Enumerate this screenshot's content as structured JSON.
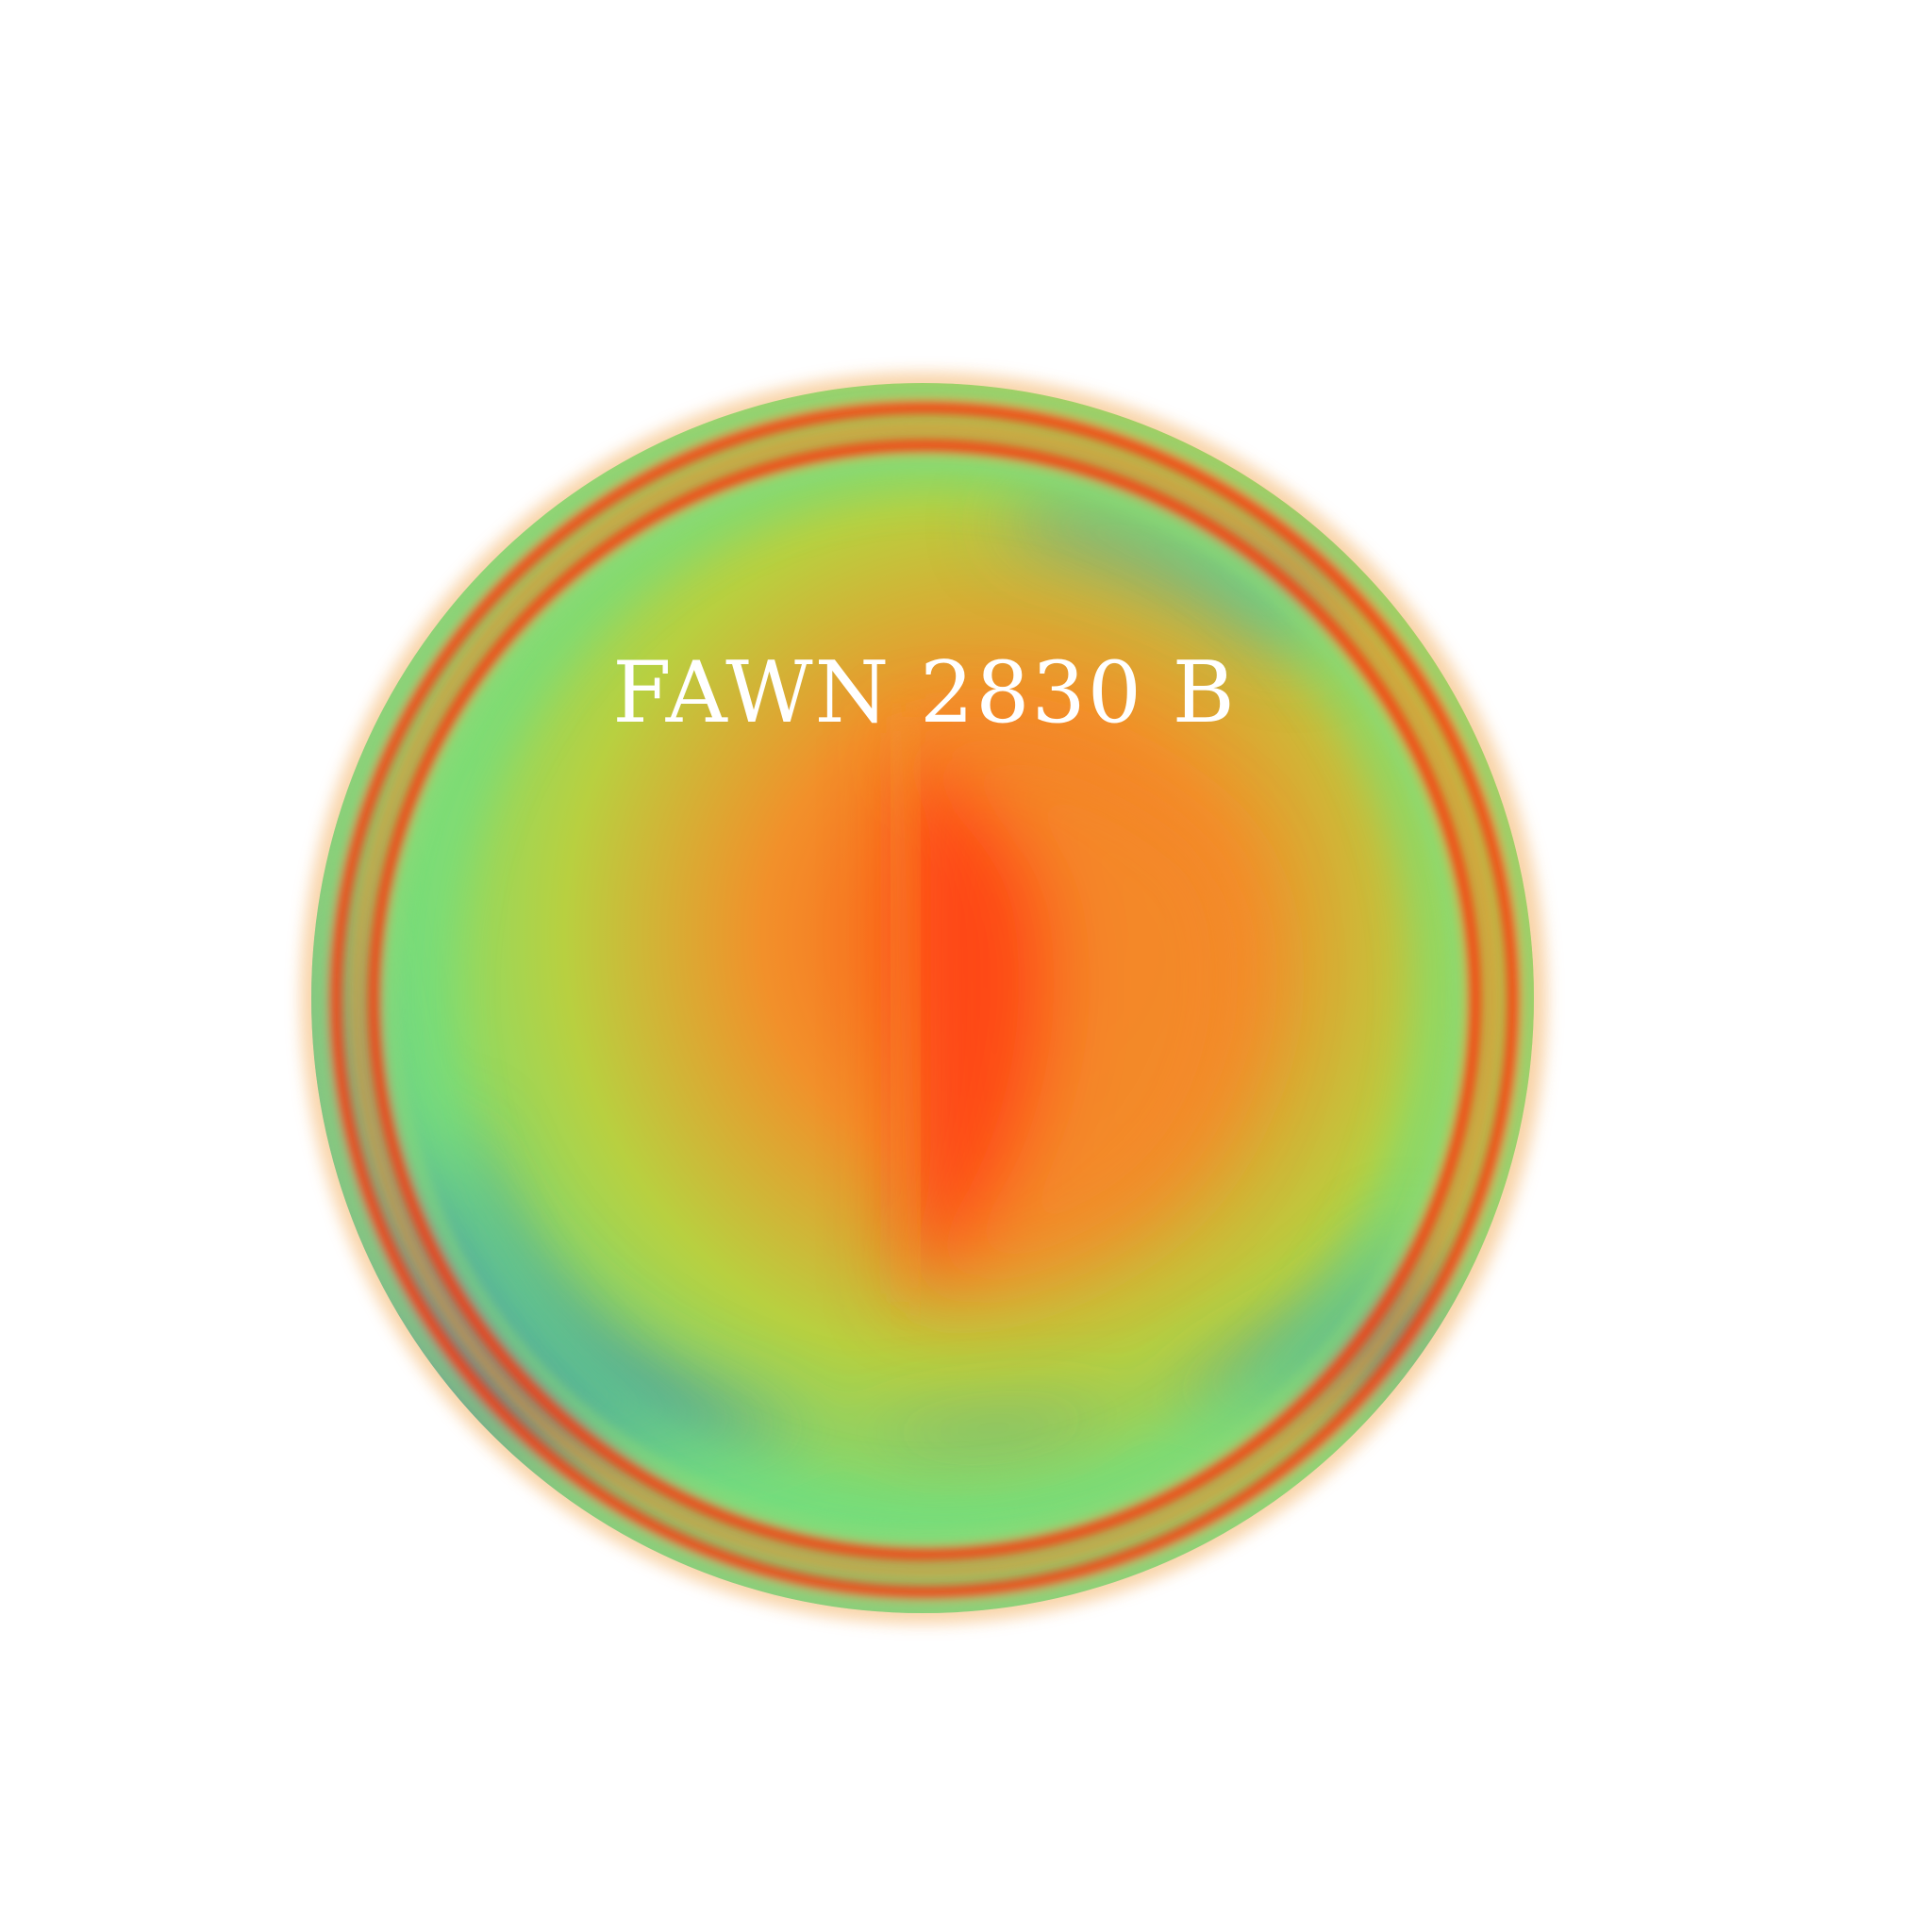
{
  "planet": {
    "label": "FAWN 2830 B",
    "colors": {
      "background": "#ffffff",
      "hot_core": "#ff4a14",
      "warm": "#f08a28",
      "yellow": "#d8c030",
      "green": "#78e07a",
      "teal": "#5ac8a0",
      "blue": "#3f8aa8",
      "rim_red": "#ff3a0a",
      "label": "#ffffff"
    }
  }
}
